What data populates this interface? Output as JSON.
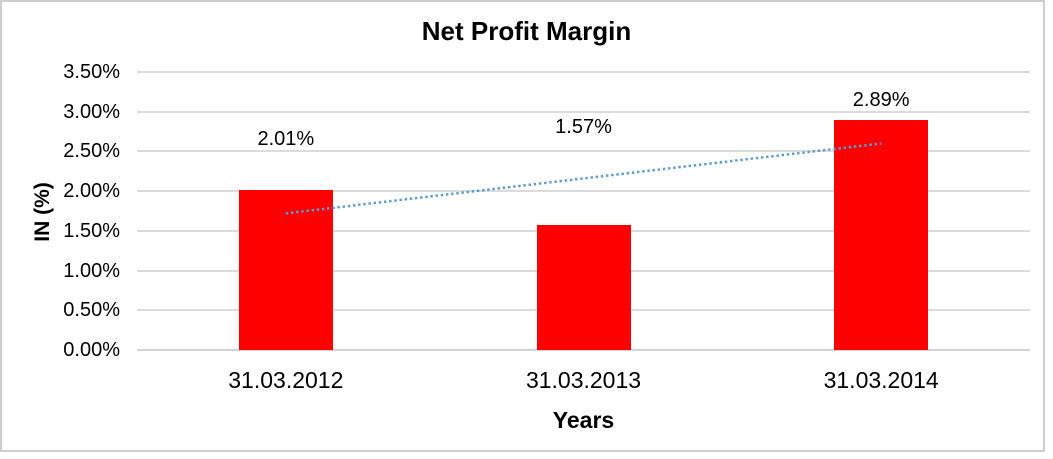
{
  "chart_data": {
    "type": "bar",
    "title": "Net Profit Margin",
    "xlabel": "Years",
    "ylabel": "IN (%)",
    "categories": [
      "31.03.2012",
      "31.03.2013",
      "31.03.2014"
    ],
    "values": [
      2.01,
      1.57,
      2.89
    ],
    "data_labels": [
      "2.01%",
      "1.57%",
      "2.89%"
    ],
    "ylim": [
      0,
      3.5
    ],
    "ytick_step": 0.5,
    "ytick_labels": [
      "0.00%",
      "0.50%",
      "1.00%",
      "1.50%",
      "2.00%",
      "2.50%",
      "3.00%",
      "3.50%"
    ],
    "grid": "horizontal",
    "legend": "none",
    "trendline": {
      "type": "linear",
      "style": "dotted",
      "start_value": 1.72,
      "end_value": 2.6
    }
  },
  "colors": {
    "bar": "#ff0000",
    "trendline": "#5b9bd5",
    "gridline": "#dcdcdc",
    "axis_line": "#d4d4d4",
    "text": "#000000",
    "frame_border": "#cfcfcf"
  }
}
